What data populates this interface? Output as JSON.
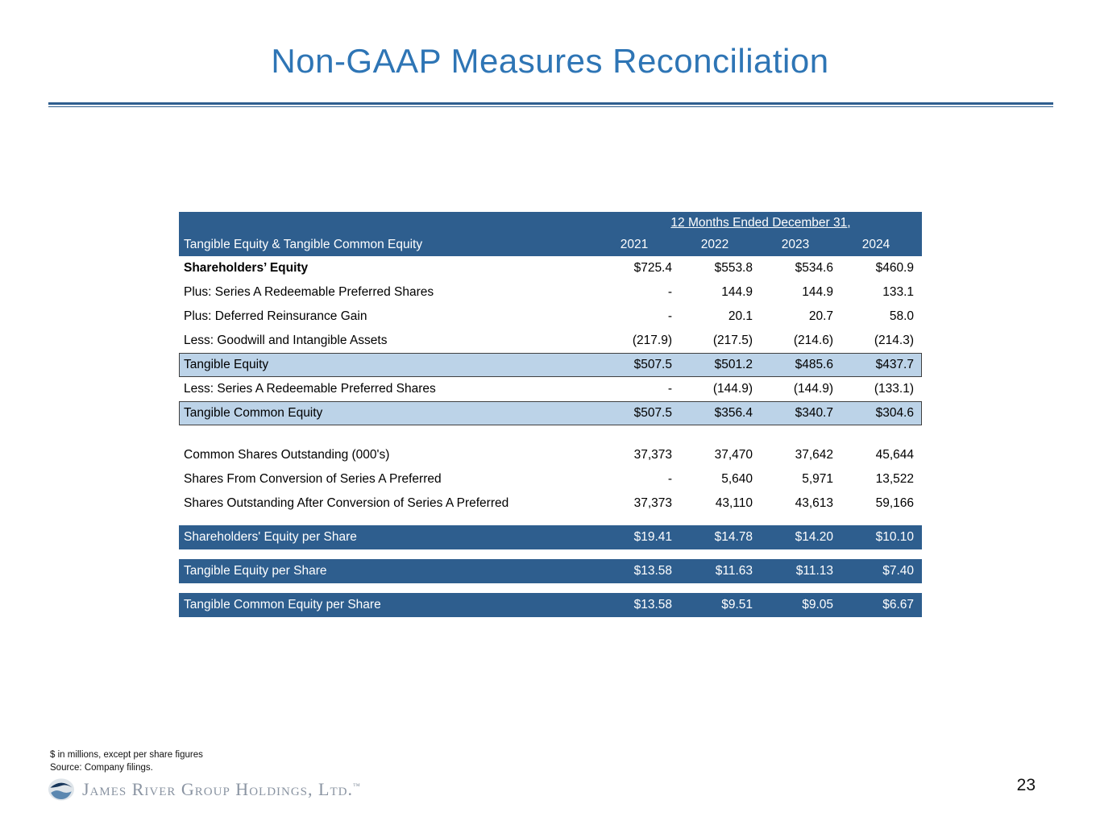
{
  "slide": {
    "title": "Non-GAAP Measures Reconciliation",
    "page_number": "23",
    "footnotes": [
      "$ in millions, except per share figures",
      "Source: Company filings."
    ],
    "logo_text": "James River Group Holdings, Ltd.",
    "logo_tm": "™"
  },
  "table": {
    "header_span": "12 Months Ended December 31,",
    "row_header": "Tangible Equity & Tangible Common Equity",
    "years": [
      "2021",
      "2022",
      "2023",
      "2024"
    ],
    "rows": [
      {
        "label": "Shareholders’ Equity",
        "values": [
          "$725.4",
          "$553.8",
          "$534.6",
          "$460.9"
        ],
        "style": "bold"
      },
      {
        "label": "Plus: Series A Redeemable Preferred Shares",
        "values": [
          "-",
          "144.9",
          "144.9",
          "133.1"
        ],
        "style": "normal"
      },
      {
        "label": "Plus: Deferred Reinsurance Gain",
        "values": [
          "-",
          "20.1",
          "20.7",
          "58.0"
        ],
        "style": "normal"
      },
      {
        "label": "Less: Goodwill and Intangible Assets",
        "values": [
          "(217.9)",
          "(217.5)",
          "(214.6)",
          "(214.3)"
        ],
        "style": "normal"
      },
      {
        "label": "Tangible Equity",
        "values": [
          "$507.5",
          "$501.2",
          "$485.6",
          "$437.7"
        ],
        "style": "highlight"
      },
      {
        "label": "Less: Series A Redeemable Preferred Shares",
        "values": [
          "-",
          "(144.9)",
          "(144.9)",
          "(133.1)"
        ],
        "style": "normal"
      },
      {
        "label": "Tangible Common Equity",
        "values": [
          "$507.5",
          "$356.4",
          "$340.7",
          "$304.6"
        ],
        "style": "highlight"
      },
      {
        "style": "spacer"
      },
      {
        "label": "Common Shares Outstanding (000's)",
        "values": [
          "37,373",
          "37,470",
          "37,642",
          "45,644"
        ],
        "style": "normal"
      },
      {
        "label": "Shares From Conversion of Series A Preferred",
        "values": [
          "-",
          "5,640",
          "5,971",
          "13,522"
        ],
        "style": "normal"
      },
      {
        "label": "Shares Outstanding After Conversion of Series A Preferred",
        "values": [
          "37,373",
          "43,110",
          "43,613",
          "59,166"
        ],
        "style": "normal"
      },
      {
        "style": "gap"
      },
      {
        "label": "Shareholders' Equity per Share",
        "values": [
          "$19.41",
          "$14.78",
          "$14.20",
          "$10.10"
        ],
        "style": "dark"
      },
      {
        "style": "gap"
      },
      {
        "label": "Tangible Equity per Share",
        "values": [
          "$13.58",
          "$11.63",
          "$11.13",
          "$7.40"
        ],
        "style": "dark"
      },
      {
        "style": "gap"
      },
      {
        "label": "Tangible Common Equity per Share",
        "values": [
          "$13.58",
          "$9.51",
          "$9.05",
          "$6.67"
        ],
        "style": "dark"
      }
    ]
  },
  "colors": {
    "title-blue": "#2E75B5",
    "rule-blue": "#2E5E8E",
    "header-blue": "#2E5E8E",
    "highlight-blue": "#BCD3E8",
    "row-border": "#404040",
    "logo-gray": "#8A94A2"
  }
}
